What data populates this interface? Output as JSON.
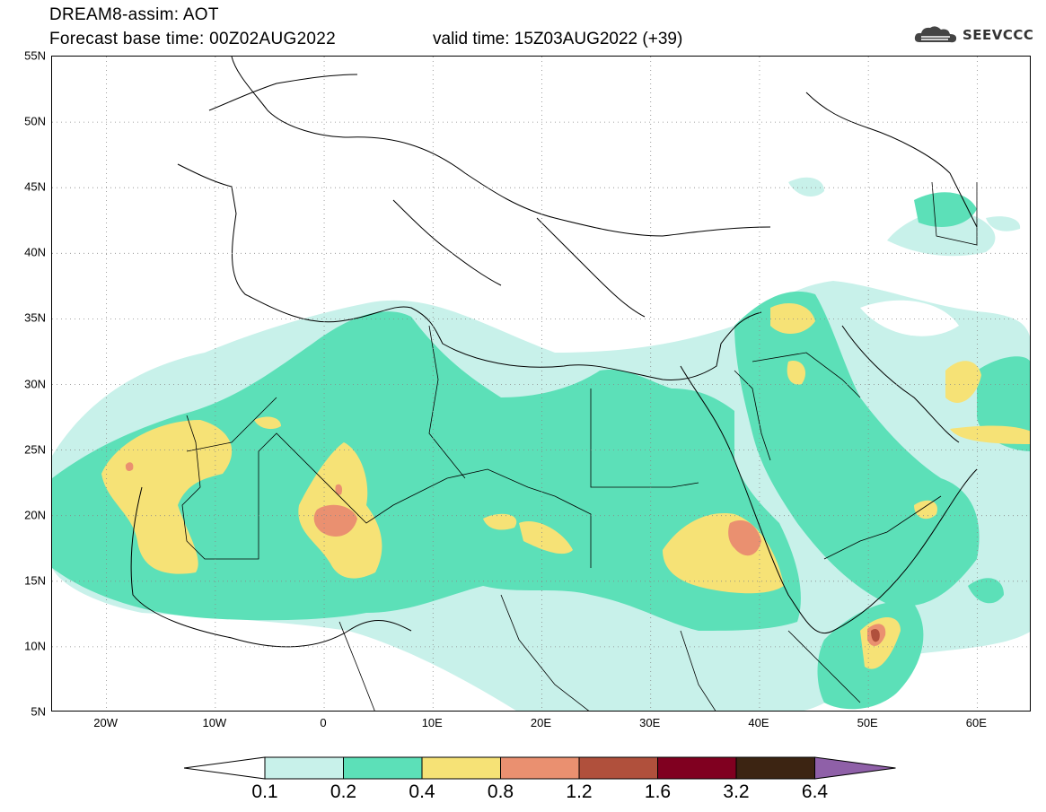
{
  "header": {
    "title_line1": "DREAM8-assim: AOT",
    "title_line2": "Forecast base time: 00Z02AUG2022",
    "valid_time": "valid time: 15Z03AUG2022 (+39)",
    "logo_text": "SEEVCCC"
  },
  "map": {
    "lat_labels": [
      "55N",
      "50N",
      "45N",
      "40N",
      "35N",
      "30N",
      "25N",
      "20N",
      "15N",
      "10N",
      "5N"
    ],
    "lon_labels": [
      "20W",
      "10W",
      "0",
      "10E",
      "20E",
      "30E",
      "40E",
      "50E",
      "60E"
    ],
    "extent": {
      "lon": [
        -25,
        65
      ],
      "lat": [
        5,
        55
      ]
    },
    "gridlines": "dotted",
    "field": "AOT"
  },
  "colorbar": {
    "levels": [
      "0.1",
      "0.2",
      "0.4",
      "0.8",
      "1.2",
      "1.6",
      "3.2",
      "6.4"
    ],
    "colors": [
      "#ffffff",
      "#c8f1ea",
      "#5ce0b8",
      "#f6e276",
      "#ea9070",
      "#b0503c",
      "#800020",
      "#3c2412",
      "#8f60a8"
    ]
  }
}
